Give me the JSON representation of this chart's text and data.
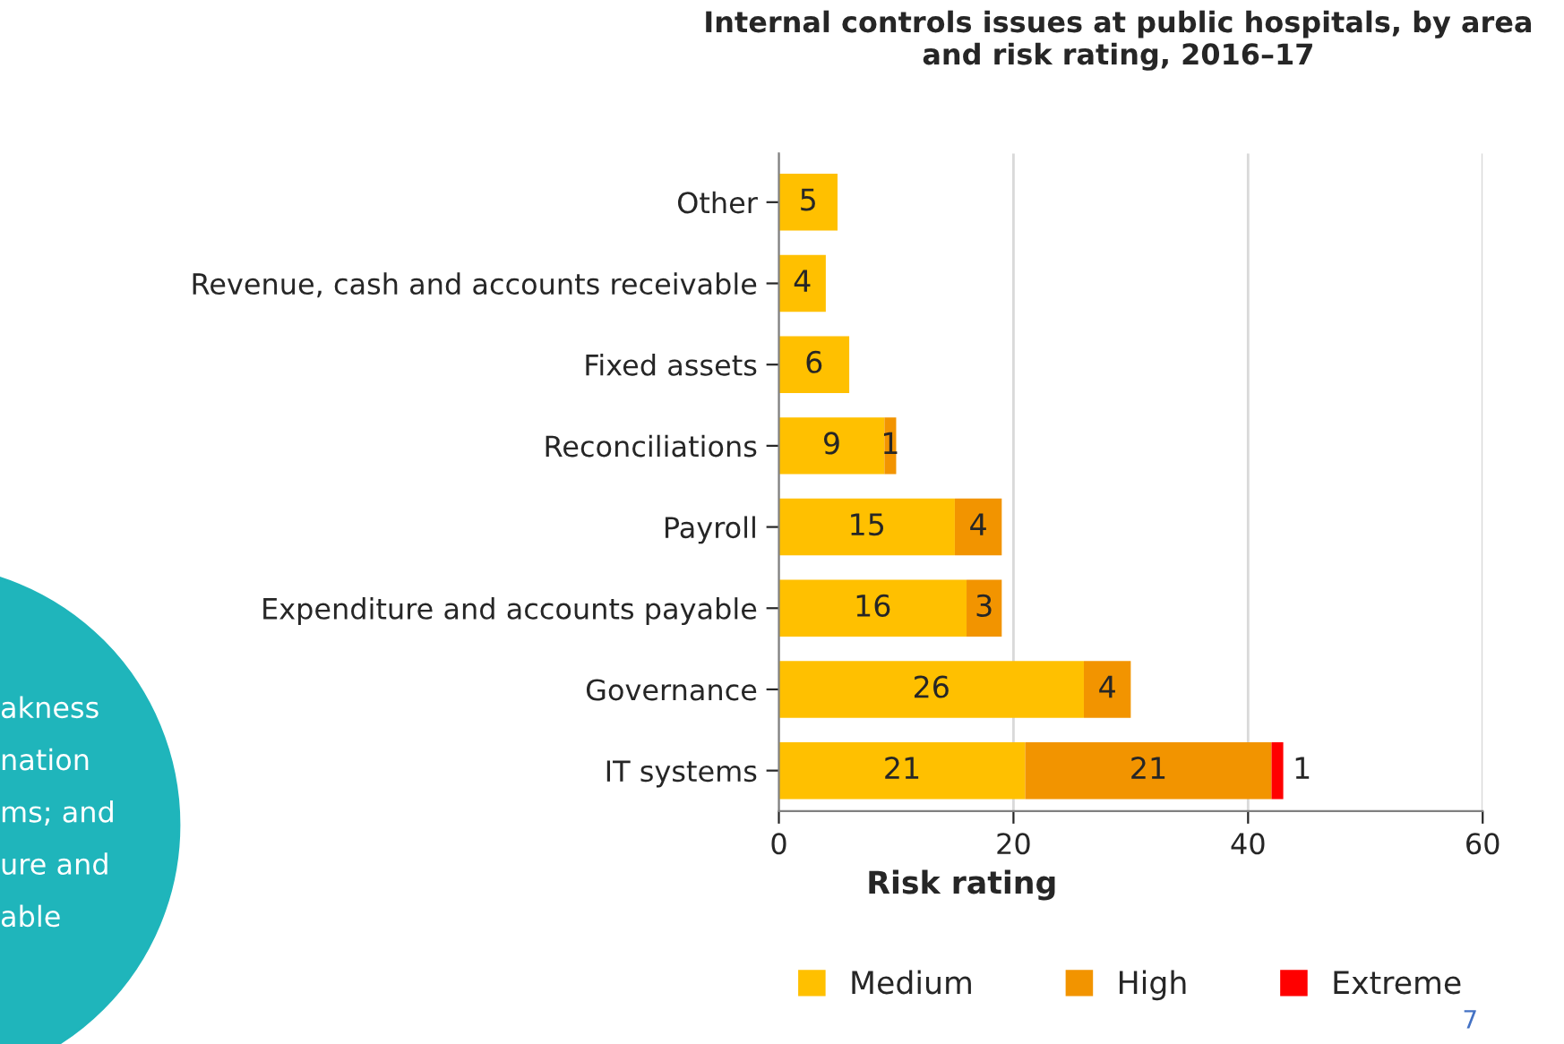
{
  "chart_data": {
    "type": "bar",
    "orientation": "horizontal",
    "stacked": true,
    "title": "Internal controls issues at public hospitals, by area and risk rating, 2016–17",
    "xlabel": "Risk rating",
    "categories": [
      "Other",
      "Revenue, cash and accounts receivable",
      "Fixed assets",
      "Reconciliations",
      "Payroll",
      "Expenditure and accounts payable",
      "Governance",
      "IT systems"
    ],
    "series": [
      {
        "name": "Medium",
        "color": "#ffc000",
        "values": [
          5,
          4,
          6,
          9,
          15,
          16,
          26,
          21
        ],
        "value_labels": [
          "5",
          "4",
          "6",
          "9",
          "15",
          "16",
          "26",
          "21"
        ]
      },
      {
        "name": "High",
        "color": "#f29400",
        "values": [
          null,
          null,
          null,
          1,
          4,
          3,
          4,
          21
        ],
        "value_labels": [
          null,
          null,
          null,
          "1",
          "4",
          "3",
          "4",
          "21"
        ]
      },
      {
        "name": "Extreme",
        "color": "#ff0000",
        "values": [
          null,
          null,
          null,
          null,
          null,
          null,
          null,
          1
        ],
        "value_labels": [
          null,
          null,
          null,
          null,
          null,
          null,
          null,
          "1"
        ]
      }
    ],
    "xlim": [
      0,
      60
    ],
    "xticks": [
      0,
      20,
      40,
      60
    ],
    "grid": "x",
    "legend": "bottom",
    "annotations": [
      "akness",
      "nation",
      "ms; and",
      "ure and",
      "able",
      "7"
    ]
  }
}
